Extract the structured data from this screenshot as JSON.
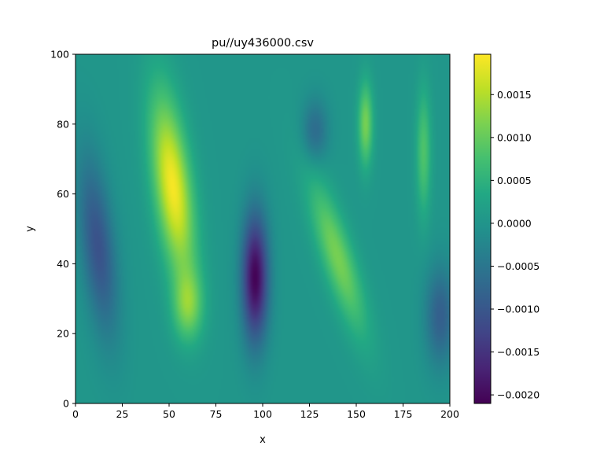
{
  "chart_data": {
    "type": "heatmap",
    "title": "pu//uy436000.csv",
    "xlabel": "x",
    "ylabel": "y",
    "xlim": [
      0,
      200
    ],
    "ylim": [
      0,
      100
    ],
    "xticks": [
      0,
      25,
      50,
      75,
      100,
      125,
      150,
      175,
      200
    ],
    "yticks": [
      0,
      20,
      40,
      60,
      80,
      100
    ],
    "colorbar": {
      "colormap": "viridis",
      "vmin": -0.0021,
      "vmax": 0.00197,
      "ticks": [
        -0.002,
        -0.0015,
        -0.001,
        -0.0005,
        0.0,
        0.0005,
        0.001,
        0.0015
      ],
      "tick_labels": [
        "−0.0020",
        "−0.0015",
        "−0.0010",
        "−0.0005",
        "0.0000",
        "0.0005",
        "0.0010",
        "0.0015"
      ]
    },
    "field_features": [
      {
        "kind": "max",
        "x": 52,
        "y": 62,
        "value": 0.0019,
        "sx": 10,
        "sy": 26,
        "tilt": -0.22
      },
      {
        "kind": "min",
        "x": 96,
        "y": 36,
        "value": -0.0021,
        "sx": 7,
        "sy": 18,
        "tilt": 0.0
      },
      {
        "kind": "max",
        "x": 140,
        "y": 42,
        "value": 0.0011,
        "sx": 9,
        "sy": 22,
        "tilt": -0.55
      },
      {
        "kind": "max",
        "x": 155,
        "y": 80,
        "value": 0.0011,
        "sx": 4,
        "sy": 12,
        "tilt": 0.0
      },
      {
        "kind": "max",
        "x": 186,
        "y": 72,
        "value": 0.0008,
        "sx": 4,
        "sy": 18,
        "tilt": 0.0
      },
      {
        "kind": "min",
        "x": 12,
        "y": 45,
        "value": -0.0011,
        "sx": 9,
        "sy": 25,
        "tilt": -0.2
      },
      {
        "kind": "min",
        "x": 195,
        "y": 25,
        "value": -0.0009,
        "sx": 8,
        "sy": 14,
        "tilt": 0.0
      },
      {
        "kind": "min",
        "x": 128,
        "y": 78,
        "value": -0.0007,
        "sx": 7,
        "sy": 9,
        "tilt": 0.0
      },
      {
        "kind": "max",
        "x": 60,
        "y": 28,
        "value": 0.001,
        "sx": 8,
        "sy": 10,
        "tilt": 0.0
      }
    ]
  }
}
